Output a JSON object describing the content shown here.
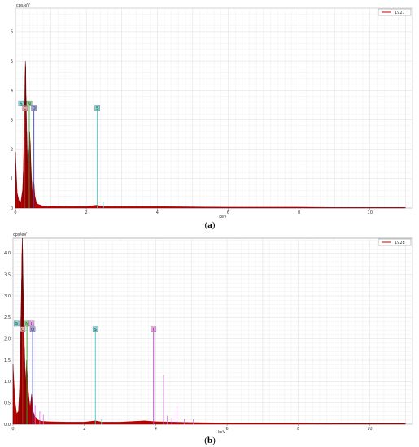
{
  "chart_data": [
    {
      "type": "line",
      "panel": "(a)",
      "panel_letter": "a",
      "ylabel": "cps/eV",
      "xlabel": "keV",
      "xlim": [
        0,
        11.2
      ],
      "ylim": [
        0,
        6.8
      ],
      "x_ticks": [
        "0",
        "2",
        "4",
        "6",
        "8",
        "10"
      ],
      "y_ticks": [
        "0",
        "1",
        "2",
        "3",
        "4",
        "5",
        "6"
      ],
      "y_tick_values": [
        0,
        1,
        2,
        3,
        4,
        5,
        6
      ],
      "grid": true,
      "legend_position": "top-right",
      "legend": [
        "1927"
      ],
      "series_color": "#c00000",
      "series": [
        {
          "name": "1927",
          "points": [
            [
              0.0,
              1.9
            ],
            [
              0.05,
              0.5
            ],
            [
              0.1,
              0.25
            ],
            [
              0.15,
              0.2
            ],
            [
              0.2,
              0.6
            ],
            [
              0.22,
              1.2
            ],
            [
              0.24,
              2.4
            ],
            [
              0.26,
              3.6
            ],
            [
              0.27,
              4.5
            ],
            [
              0.28,
              5.0
            ],
            [
              0.29,
              4.8
            ],
            [
              0.3,
              3.8
            ],
            [
              0.32,
              2.6
            ],
            [
              0.34,
              1.7
            ],
            [
              0.36,
              1.4
            ],
            [
              0.38,
              2.0
            ],
            [
              0.4,
              2.6
            ],
            [
              0.42,
              2.2
            ],
            [
              0.44,
              1.4
            ],
            [
              0.46,
              0.9
            ],
            [
              0.48,
              0.5
            ],
            [
              0.52,
              0.9
            ],
            [
              0.55,
              0.4
            ],
            [
              0.6,
              0.15
            ],
            [
              0.7,
              0.1
            ],
            [
              0.8,
              0.06
            ],
            [
              0.9,
              0.05
            ],
            [
              1.0,
              0.06
            ],
            [
              1.5,
              0.05
            ],
            [
              2.0,
              0.05
            ],
            [
              2.31,
              0.1
            ],
            [
              2.4,
              0.06
            ],
            [
              2.5,
              0.05
            ],
            [
              3.0,
              0.05
            ],
            [
              4.0,
              0.05
            ],
            [
              5.0,
              0.04
            ],
            [
              6.0,
              0.03
            ],
            [
              7.0,
              0.03
            ],
            [
              8.0,
              0.03
            ],
            [
              9.0,
              0.02
            ],
            [
              10.0,
              0.02
            ],
            [
              11.0,
              0.02
            ]
          ]
        }
      ],
      "element_markers": [
        {
          "label": "S",
          "x": 0.16,
          "level": 3.55,
          "color": "#7fd8d8"
        },
        {
          "label": "C",
          "x": 0.27,
          "level": 3.4,
          "color": "#e8a0a0"
        },
        {
          "label": "N",
          "x": 0.39,
          "level": 3.55,
          "color": "#8ed88e"
        },
        {
          "label": "O",
          "x": 0.52,
          "level": 3.4,
          "color": "#a0a0e8"
        },
        {
          "label": "S",
          "x": 2.31,
          "level": 3.4,
          "color": "#7fd8d8"
        }
      ],
      "marker_lines": [
        {
          "x": 0.27,
          "top": 3.4,
          "color": "#d23232"
        },
        {
          "x": 0.39,
          "top": 3.55,
          "color": "#32a832"
        },
        {
          "x": 0.52,
          "top": 3.4,
          "color": "#4040c8"
        },
        {
          "x": 2.31,
          "top": 3.4,
          "color": "#40c8c8"
        }
      ],
      "spikes": [
        {
          "x": 2.48,
          "y": 0.22,
          "color": "#7fd8d8"
        }
      ]
    },
    {
      "type": "line",
      "panel": "(b)",
      "panel_letter": "b",
      "ylabel": "cps/eV",
      "xlabel": "keV",
      "xlim": [
        0,
        11.2
      ],
      "ylim": [
        0,
        4.35
      ],
      "x_ticks": [
        "0",
        "2",
        "4",
        "6",
        "8",
        "10"
      ],
      "y_ticks": [
        "0.0",
        "0.5",
        "1.0",
        "1.5",
        "2.0",
        "2.5",
        "3.0",
        "3.5",
        "4.0"
      ],
      "y_tick_values": [
        0,
        0.5,
        1.0,
        1.5,
        2.0,
        2.5,
        3.0,
        3.5,
        4.0
      ],
      "grid": true,
      "legend_position": "top-right",
      "legend": [
        "1928"
      ],
      "series_color": "#c00000",
      "series": [
        {
          "name": "1928",
          "points": [
            [
              0.0,
              1.4
            ],
            [
              0.05,
              0.6
            ],
            [
              0.1,
              0.25
            ],
            [
              0.15,
              0.3
            ],
            [
              0.18,
              0.8
            ],
            [
              0.2,
              1.6
            ],
            [
              0.22,
              2.5
            ],
            [
              0.24,
              3.4
            ],
            [
              0.25,
              4.0
            ],
            [
              0.26,
              4.35
            ],
            [
              0.27,
              4.1
            ],
            [
              0.28,
              3.5
            ],
            [
              0.3,
              2.6
            ],
            [
              0.32,
              1.8
            ],
            [
              0.34,
              1.3
            ],
            [
              0.36,
              1.0
            ],
            [
              0.38,
              1.5
            ],
            [
              0.4,
              1.2
            ],
            [
              0.42,
              0.9
            ],
            [
              0.45,
              0.6
            ],
            [
              0.48,
              0.4
            ],
            [
              0.52,
              0.7
            ],
            [
              0.55,
              0.35
            ],
            [
              0.6,
              0.2
            ],
            [
              0.7,
              0.1
            ],
            [
              0.8,
              0.07
            ],
            [
              1.0,
              0.06
            ],
            [
              1.5,
              0.05
            ],
            [
              2.0,
              0.05
            ],
            [
              2.31,
              0.08
            ],
            [
              2.5,
              0.05
            ],
            [
              3.0,
              0.05
            ],
            [
              3.69,
              0.08
            ],
            [
              4.0,
              0.06
            ],
            [
              4.5,
              0.05
            ],
            [
              5.0,
              0.04
            ],
            [
              6.0,
              0.03
            ],
            [
              7.0,
              0.03
            ],
            [
              8.0,
              0.03
            ],
            [
              9.0,
              0.02
            ],
            [
              10.0,
              0.02
            ],
            [
              11.0,
              0.02
            ]
          ]
        }
      ],
      "element_markers": [
        {
          "label": "S",
          "x": 0.1,
          "level": 2.35,
          "color": "#7fd8d8"
        },
        {
          "label": "C",
          "x": 0.27,
          "level": 2.22,
          "color": "#e8a0a0"
        },
        {
          "label": "N",
          "x": 0.39,
          "level": 2.35,
          "color": "#8ed88e"
        },
        {
          "label": "I",
          "x": 0.52,
          "level": 2.35,
          "color": "#e8a0e8"
        },
        {
          "label": "O",
          "x": 0.55,
          "level": 2.22,
          "color": "#a0a0e8"
        },
        {
          "label": "S",
          "x": 2.31,
          "level": 2.22,
          "color": "#7fd8d8"
        },
        {
          "label": "I",
          "x": 3.94,
          "level": 2.22,
          "color": "#e8a0e8"
        }
      ],
      "marker_lines": [
        {
          "x": 0.27,
          "top": 2.22,
          "color": "#d23232"
        },
        {
          "x": 0.39,
          "top": 2.35,
          "color": "#32a832"
        },
        {
          "x": 0.55,
          "top": 2.22,
          "color": "#4040c8"
        },
        {
          "x": 2.31,
          "top": 2.22,
          "color": "#40c8c8"
        },
        {
          "x": 3.94,
          "top": 2.22,
          "color": "#c040c8"
        }
      ],
      "spikes": [
        {
          "x": 0.62,
          "y": 0.45,
          "color": "#e070e0"
        },
        {
          "x": 0.75,
          "y": 0.3,
          "color": "#e070e0"
        },
        {
          "x": 0.85,
          "y": 0.22,
          "color": "#e070e0"
        },
        {
          "x": 2.48,
          "y": 0.12,
          "color": "#7fd8d8"
        },
        {
          "x": 4.22,
          "y": 1.15,
          "color": "#e070e0"
        },
        {
          "x": 4.32,
          "y": 0.2,
          "color": "#e070e0"
        },
        {
          "x": 4.45,
          "y": 0.15,
          "color": "#e070e0"
        },
        {
          "x": 4.6,
          "y": 0.42,
          "color": "#e070e0"
        },
        {
          "x": 4.8,
          "y": 0.12,
          "color": "#e070e0"
        },
        {
          "x": 5.05,
          "y": 0.12,
          "color": "#e070e0"
        }
      ]
    }
  ]
}
